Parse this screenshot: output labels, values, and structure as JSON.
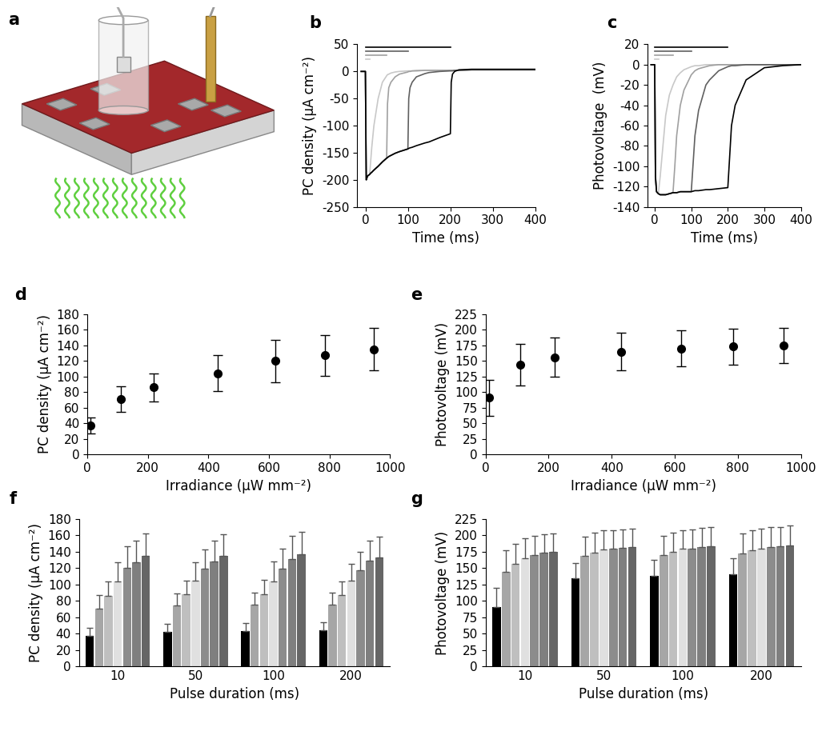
{
  "chart_data": [
    {
      "type": "diagram",
      "title": "a"
    },
    {
      "type": "line",
      "title": "b",
      "x_label": "Time (ms)",
      "y_label": "PC density (µA cm⁻²)",
      "xlim": [
        -20,
        400
      ],
      "xticks": [
        0,
        100,
        200,
        300,
        400
      ],
      "ylim": [
        -250,
        50
      ],
      "yticks": [
        -250,
        -200,
        -150,
        -100,
        -50,
        0,
        50
      ],
      "x": [
        -10,
        0,
        2,
        5,
        10,
        12,
        15,
        20,
        30,
        40,
        50,
        52,
        55,
        60,
        70,
        80,
        100,
        102,
        105,
        110,
        120,
        140,
        150,
        175,
        200,
        202,
        205,
        210,
        220,
        250,
        300,
        350,
        400
      ],
      "series": [
        {
          "color": "#c8c8c8",
          "values": [
            0,
            0,
            -200,
            -193,
            -190,
            -170,
            -140,
            -100,
            -50,
            -20,
            -8,
            -6,
            -5,
            -3,
            -1,
            0,
            1,
            1,
            1,
            1,
            2,
            2,
            2,
            2,
            2,
            2,
            2,
            2,
            2,
            3,
            3,
            3,
            3
          ]
        },
        {
          "color": "#a0a0a0",
          "values": [
            0,
            0,
            -200,
            -193,
            -190,
            -188,
            -186,
            -182,
            -175,
            -167,
            -160,
            -60,
            -30,
            -20,
            -10,
            -5,
            -1,
            0,
            0,
            1,
            1,
            2,
            2,
            2,
            2,
            2,
            2,
            2,
            2,
            3,
            3,
            3,
            3
          ]
        },
        {
          "color": "#606060",
          "values": [
            0,
            0,
            -200,
            -193,
            -190,
            -188,
            -186,
            -182,
            -175,
            -167,
            -160,
            -159,
            -157,
            -155,
            -151,
            -148,
            -143,
            -50,
            -30,
            -20,
            -10,
            -4,
            -2,
            0,
            1,
            1,
            1,
            2,
            2,
            3,
            3,
            3,
            3
          ]
        },
        {
          "color": "#000000",
          "values": [
            0,
            0,
            -200,
            -193,
            -190,
            -188,
            -186,
            -182,
            -175,
            -167,
            -160,
            -159,
            -157,
            -155,
            -151,
            -148,
            -143,
            -142,
            -141,
            -140,
            -137,
            -132,
            -130,
            -122,
            -115,
            -20,
            -5,
            0,
            3,
            4,
            4,
            4,
            4
          ]
        }
      ],
      "pulse_bars": [
        {
          "start": 0,
          "end": 10,
          "y": 22
        },
        {
          "start": 0,
          "end": 50,
          "y": 30
        },
        {
          "start": 0,
          "end": 100,
          "y": 37
        },
        {
          "start": 0,
          "end": 200,
          "y": 45
        }
      ]
    },
    {
      "type": "line",
      "title": "c",
      "x_label": "Time (ms)",
      "y_label": "Photovoltage  (mV)",
      "xlim": [
        -20,
        400
      ],
      "xticks": [
        0,
        100,
        200,
        300,
        400
      ],
      "ylim": [
        -140,
        20
      ],
      "yticks": [
        -140,
        -120,
        -100,
        -80,
        -60,
        -40,
        -20,
        0,
        20
      ],
      "x": [
        -10,
        0,
        2,
        5,
        10,
        15,
        20,
        30,
        40,
        50,
        55,
        60,
        70,
        80,
        100,
        110,
        120,
        140,
        150,
        175,
        200,
        210,
        220,
        250,
        300,
        350,
        400
      ],
      "series": [
        {
          "color": "#c8c8c8",
          "values": [
            0,
            0,
            -110,
            -125,
            -127,
            -110,
            -90,
            -50,
            -30,
            -20,
            -16,
            -12,
            -8,
            -5,
            -2,
            -1,
            -1,
            0,
            0,
            0,
            0,
            0,
            0,
            0,
            0,
            0,
            0
          ]
        },
        {
          "color": "#a0a0a0",
          "values": [
            0,
            0,
            -110,
            -125,
            -127,
            -128,
            -128,
            -128,
            -127,
            -126,
            -100,
            -70,
            -40,
            -25,
            -10,
            -6,
            -4,
            -2,
            -1,
            0,
            0,
            0,
            0,
            0,
            0,
            0,
            0
          ]
        },
        {
          "color": "#606060",
          "values": [
            0,
            0,
            -110,
            -125,
            -127,
            -128,
            -128,
            -128,
            -127,
            -126,
            -126,
            -126,
            -125,
            -125,
            -125,
            -70,
            -45,
            -20,
            -15,
            -6,
            -2,
            -1,
            -1,
            0,
            0,
            0,
            0
          ]
        },
        {
          "color": "#000000",
          "values": [
            0,
            0,
            -110,
            -125,
            -127,
            -128,
            -128,
            -128,
            -127,
            -126,
            -126,
            -126,
            -125,
            -125,
            -125,
            -124,
            -124,
            -123,
            -123,
            -122,
            -121,
            -60,
            -40,
            -15,
            -3,
            -1,
            0
          ]
        }
      ],
      "pulse_bars": [
        {
          "start": 0,
          "end": 10,
          "y": 5
        },
        {
          "start": 0,
          "end": 50,
          "y": 9
        },
        {
          "start": 0,
          "end": 100,
          "y": 13
        },
        {
          "start": 0,
          "end": 200,
          "y": 17
        }
      ]
    },
    {
      "type": "scatter",
      "title": "d",
      "x_label": "Irradiance (µW mm⁻²)",
      "y_label": "PC density (µA cm⁻²)",
      "xlim": [
        0,
        1000
      ],
      "xticks": [
        0,
        200,
        400,
        600,
        800,
        1000
      ],
      "ylim": [
        0,
        180
      ],
      "yticks": [
        0,
        20,
        40,
        60,
        80,
        100,
        120,
        140,
        160,
        180
      ],
      "x": [
        10,
        110,
        220,
        430,
        620,
        785,
        945
      ],
      "values": [
        37,
        71,
        86,
        104,
        120,
        127,
        135
      ],
      "errors": [
        10,
        16,
        18,
        23,
        27,
        26,
        27
      ],
      "color": "#000000",
      "marker": "o"
    },
    {
      "type": "scatter",
      "title": "e",
      "x_label": "Irradiance (µW mm⁻²)",
      "y_label": "Photovoltage (mV)",
      "xlim": [
        0,
        1000
      ],
      "xticks": [
        0,
        200,
        400,
        600,
        800,
        1000
      ],
      "ylim": [
        0,
        225
      ],
      "yticks": [
        0,
        25,
        50,
        75,
        100,
        125,
        150,
        175,
        200,
        225
      ],
      "x": [
        10,
        110,
        220,
        430,
        620,
        785,
        945
      ],
      "values": [
        91,
        144,
        156,
        165,
        170,
        173,
        175
      ],
      "errors": [
        29,
        33,
        31,
        30,
        29,
        29,
        28
      ],
      "color": "#000000",
      "marker": "o"
    },
    {
      "type": "bar",
      "title": "f",
      "x_label": "Pulse duration (ms)",
      "y_label": "PC density (µA cm⁻²)",
      "ylim": [
        0,
        180
      ],
      "yticks": [
        0,
        20,
        40,
        60,
        80,
        100,
        120,
        140,
        160,
        180
      ],
      "categories": [
        "10",
        "50",
        "100",
        "200"
      ],
      "series": [
        {
          "color": "#000000",
          "values": [
            37,
            42,
            43,
            44
          ],
          "errors": [
            10,
            10,
            10,
            10
          ]
        },
        {
          "color": "#a6a6a6",
          "values": [
            71,
            74,
            75,
            75
          ],
          "errors": [
            16,
            15,
            15,
            15
          ]
        },
        {
          "color": "#bfbfbf",
          "values": [
            86,
            88,
            88,
            87
          ],
          "errors": [
            18,
            17,
            18,
            17
          ]
        },
        {
          "color": "#e0e0e0",
          "values": [
            104,
            105,
            104,
            105
          ],
          "errors": [
            23,
            22,
            24,
            20
          ]
        },
        {
          "color": "#8c8c8c",
          "values": [
            120,
            119,
            119,
            117
          ],
          "errors": [
            27,
            24,
            25,
            23
          ]
        },
        {
          "color": "#7f7f7f",
          "values": [
            127,
            128,
            131,
            129
          ],
          "errors": [
            26,
            25,
            28,
            24
          ]
        },
        {
          "color": "#666666",
          "values": [
            135,
            135,
            137,
            133
          ],
          "errors": [
            27,
            26,
            27,
            25
          ]
        }
      ]
    },
    {
      "type": "bar",
      "title": "g",
      "x_label": "Pulse duration (ms)",
      "y_label": "Photovoltage (mV)",
      "ylim": [
        0,
        225
      ],
      "yticks": [
        0,
        25,
        50,
        75,
        100,
        125,
        150,
        175,
        200,
        225
      ],
      "categories": [
        "10",
        "50",
        "100",
        "200"
      ],
      "series": [
        {
          "color": "#000000",
          "values": [
            91,
            134,
            138,
            140
          ],
          "errors": [
            29,
            24,
            24,
            25
          ]
        },
        {
          "color": "#a6a6a6",
          "values": [
            144,
            168,
            170,
            172
          ],
          "errors": [
            33,
            30,
            29,
            31
          ]
        },
        {
          "color": "#bfbfbf",
          "values": [
            156,
            174,
            175,
            177
          ],
          "errors": [
            31,
            30,
            29,
            31
          ]
        },
        {
          "color": "#e0e0e0",
          "values": [
            165,
            178,
            179,
            180
          ],
          "errors": [
            30,
            29,
            29,
            30
          ]
        },
        {
          "color": "#8c8c8c",
          "values": [
            170,
            180,
            180,
            182
          ],
          "errors": [
            29,
            28,
            29,
            30
          ]
        },
        {
          "color": "#7f7f7f",
          "values": [
            173,
            181,
            182,
            183
          ],
          "errors": [
            29,
            28,
            29,
            30
          ]
        },
        {
          "color": "#666666",
          "values": [
            175,
            182,
            183,
            185
          ],
          "errors": [
            28,
            28,
            29,
            30
          ]
        }
      ]
    }
  ]
}
